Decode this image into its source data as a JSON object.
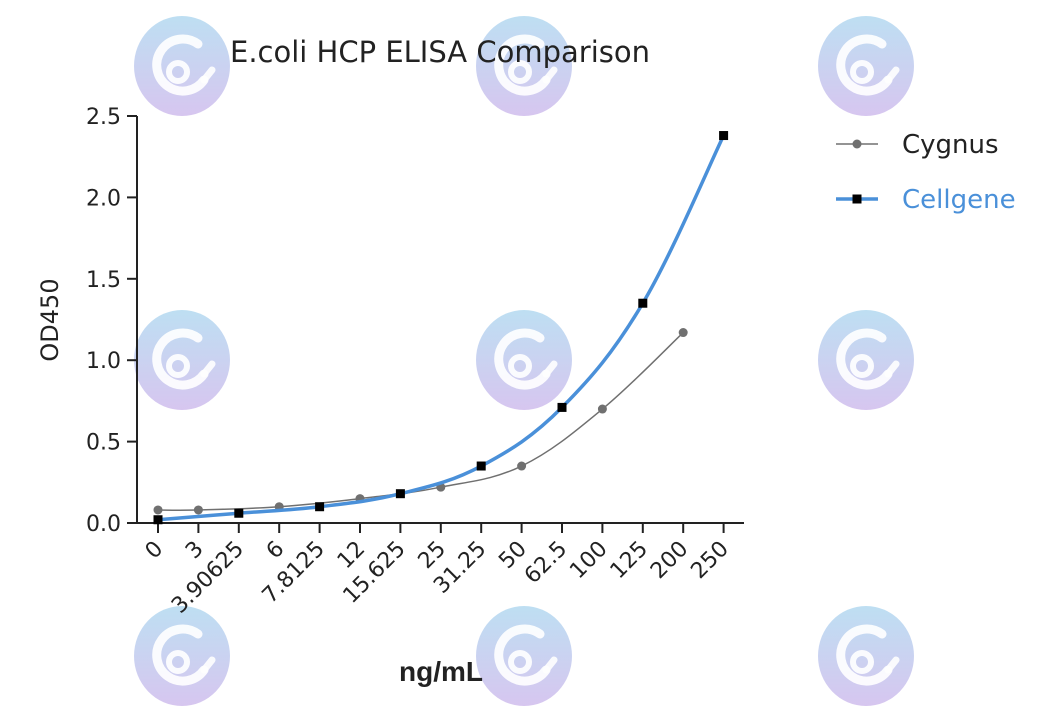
{
  "chart_data": {
    "type": "line",
    "title": "E.coli HCP ELISA Comparison",
    "xlabel": "ng/mL",
    "ylabel": "OD450",
    "ylim": [
      0,
      2.5
    ],
    "yticks": [
      "0.0",
      "0.5",
      "1.0",
      "1.5",
      "2.0",
      "2.5"
    ],
    "categories": [
      "0",
      "3",
      "3.90625",
      "6",
      "7.8125",
      "12",
      "15.625",
      "25",
      "31.25",
      "50",
      "62.5",
      "100",
      "125",
      "200",
      "250"
    ],
    "legend_position": "top-right",
    "grid": false,
    "series": [
      {
        "name": "Cygnus",
        "color": "#707070",
        "marker": "circle",
        "points": [
          {
            "x": "0",
            "y": 0.08
          },
          {
            "x": "3",
            "y": 0.08
          },
          {
            "x": "6",
            "y": 0.1
          },
          {
            "x": "12",
            "y": 0.15
          },
          {
            "x": "25",
            "y": 0.22
          },
          {
            "x": "50",
            "y": 0.35
          },
          {
            "x": "100",
            "y": 0.7
          },
          {
            "x": "200",
            "y": 1.17
          }
        ]
      },
      {
        "name": "Cellgene",
        "color": "#4a90d9",
        "marker": "square",
        "points": [
          {
            "x": "0",
            "y": 0.02
          },
          {
            "x": "3.90625",
            "y": 0.06
          },
          {
            "x": "7.8125",
            "y": 0.1
          },
          {
            "x": "15.625",
            "y": 0.18
          },
          {
            "x": "31.25",
            "y": 0.35
          },
          {
            "x": "62.5",
            "y": 0.71
          },
          {
            "x": "125",
            "y": 1.35
          },
          {
            "x": "250",
            "y": 2.38
          }
        ]
      }
    ]
  }
}
